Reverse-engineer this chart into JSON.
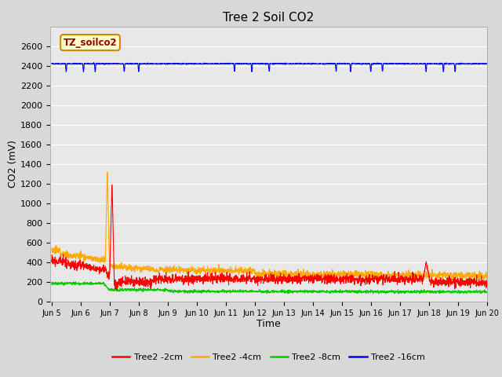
{
  "title": "Tree 2 Soil CO2",
  "xlabel": "Time",
  "ylabel": "CO2 (mV)",
  "ylim": [
    0,
    2800
  ],
  "yticks": [
    0,
    200,
    400,
    600,
    800,
    1000,
    1200,
    1400,
    1600,
    1800,
    2000,
    2200,
    2400,
    2600
  ],
  "xlim_start": 5,
  "xlim_end": 20,
  "xtick_labels": [
    "Jun 5",
    "Jun 6",
    "Jun 7",
    "Jun 8",
    "Jun 9",
    "Jun 10",
    "Jun 11",
    "Jun 12",
    "Jun 13",
    "Jun 14",
    "Jun 15",
    "Jun 16",
    "Jun 17",
    "Jun 18",
    "Jun 19",
    "Jun 20"
  ],
  "legend_label": "TZ_soilco2",
  "legend_entries": [
    "Tree2 -2cm",
    "Tree2 -4cm",
    "Tree2 -8cm",
    "Tree2 -16cm"
  ],
  "line_colors": [
    "#ff0000",
    "#ffaa00",
    "#00cc00",
    "#0000ff"
  ],
  "fig_bg_color": "#d8d8d8",
  "plot_bg_color": "#e8e8e8",
  "grid_color": "#ffffff",
  "title_fontsize": 11,
  "axis_label_fontsize": 9,
  "tick_fontsize": 8,
  "legend_fontsize": 8,
  "tz_box_facecolor": "#ffffcc",
  "tz_box_edgecolor": "#cc8800",
  "tz_text_color": "#990000"
}
